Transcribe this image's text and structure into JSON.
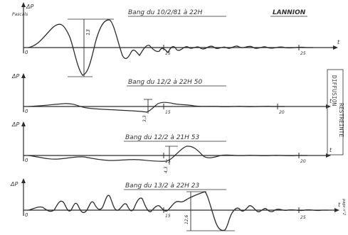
{
  "colors": {
    "ink": "#2b2b2b",
    "paper": "#ffffff",
    "stamp": "#555555"
  },
  "location": "LANNION",
  "stamp": {
    "line1": "DIFFUSION",
    "line2": "RESTREINTE"
  },
  "page_note": "page n°2",
  "panels": [
    {
      "title": "Bang du 10/2/81 à 22H",
      "ylabel": "ΔP",
      "yunit": "Pascals",
      "xlabel": "t",
      "origin_label": "0",
      "tick_mid": "15",
      "tick_end": "25",
      "amp_label": "13"
    },
    {
      "title": "Bang du 12/2 à 22H 50",
      "ylabel": "ΔP",
      "xlabel": "t",
      "origin_label": "0",
      "tick_mid": "15",
      "tick_end": "20",
      "amp_label": "3,3"
    },
    {
      "title": "Bang du 12/2 à 21H 53",
      "ylabel": "ΔP",
      "xlabel": "t",
      "origin_label": "0",
      "tick_mid": "15",
      "tick_end": "20",
      "amp_label": "4,3"
    },
    {
      "title": "Bang du 13/2 à 22H 23",
      "ylabel": "ΔP",
      "xlabel": "t",
      "origin_label": "0",
      "tick_mid": "15",
      "tick_end": "25",
      "amp_label": "12,6"
    }
  ]
}
